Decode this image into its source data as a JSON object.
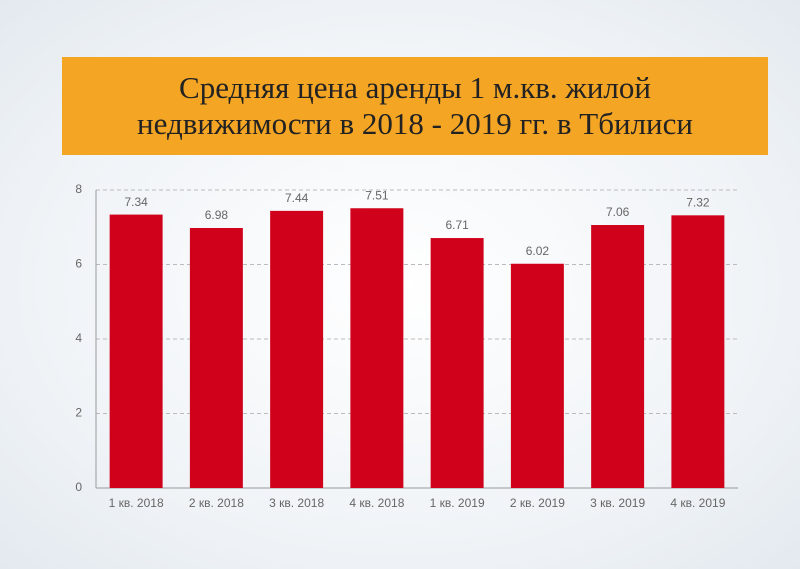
{
  "chart_data": {
    "type": "bar",
    "title": "Средняя цена аренды 1 м.кв. жилой\nнедвижимости в 2018 - 2019 гг. в Тбилиси",
    "categories": [
      "1 кв. 2018",
      "2 кв. 2018",
      "3 кв. 2018",
      "4 кв. 2018",
      "1 кв. 2019",
      "2 кв. 2019",
      "3 кв. 2019",
      "4 кв. 2019"
    ],
    "values": [
      7.34,
      6.98,
      7.44,
      7.51,
      6.71,
      6.02,
      7.06,
      7.32
    ],
    "color": "#d0021b",
    "ylim": [
      0,
      8
    ],
    "yticks": [
      0,
      2,
      4,
      6,
      8
    ],
    "grid": true
  }
}
